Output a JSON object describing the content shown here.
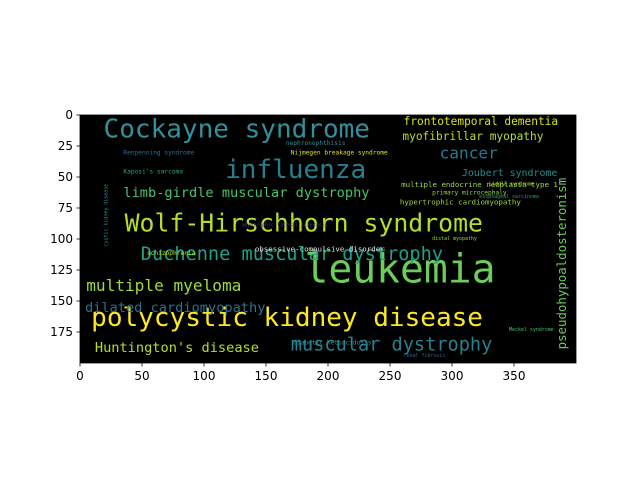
{
  "chart_data": {
    "type": "image",
    "title": "",
    "xlabel": "",
    "ylabel": "",
    "xlim": [
      0,
      400
    ],
    "ylim": [
      200,
      0
    ],
    "x_ticks": [
      0,
      50,
      100,
      150,
      200,
      250,
      300,
      350
    ],
    "y_ticks": [
      0,
      25,
      50,
      75,
      100,
      125,
      150,
      175
    ],
    "background_color": "#000000",
    "words": [
      {
        "text": "leukemia",
        "x": 181,
        "y": 135,
        "size": 32,
        "color": "#6ccd5a"
      },
      {
        "text": "polycystic kidney disease",
        "x": 9,
        "y": 170,
        "size": 21,
        "color": "#fde725"
      },
      {
        "text": "Wolf-Hirschhorn syndrome",
        "x": 36,
        "y": 94,
        "size": 20,
        "color": "#b5de2b"
      },
      {
        "text": "Cockayne syndrome",
        "x": 19,
        "y": 18,
        "size": 21,
        "color": "#31909a"
      },
      {
        "text": "influenza",
        "x": 117,
        "y": 51,
        "size": 21,
        "color": "#277f8e"
      },
      {
        "text": "Duchenne muscular dystrophy",
        "x": 49,
        "y": 117,
        "size": 15,
        "color": "#1fa187"
      },
      {
        "text": "muscular dystrophy",
        "x": 170,
        "y": 190,
        "size": 15,
        "color": "#26828e"
      },
      {
        "text": "multiple myeloma",
        "x": 5,
        "y": 142,
        "size": 13,
        "color": "#a0da39"
      },
      {
        "text": "limb-girdle muscular dystrophy",
        "x": 35,
        "y": 66,
        "size": 11,
        "color": "#4ac16d"
      },
      {
        "text": "dilated cardiomyopathy",
        "x": 4,
        "y": 159,
        "size": 11,
        "color": "#2c728e"
      },
      {
        "text": "Huntington's disease",
        "x": 12,
        "y": 191,
        "size": 11,
        "color": "#b5de2b"
      },
      {
        "text": "cancer",
        "x": 290,
        "y": 35,
        "size": 13,
        "color": "#2a788e"
      },
      {
        "text": "frontotemporal dementia",
        "x": 261,
        "y": 8,
        "size": 9,
        "color": "#d8e219"
      },
      {
        "text": "myofibrillar myopathy",
        "x": 260,
        "y": 20,
        "size": 9,
        "color": "#b5de2b"
      },
      {
        "text": "Joubert syndrome",
        "x": 308,
        "y": 49,
        "size": 8,
        "color": "#238a8d"
      },
      {
        "text": "multiple endocrine neoplasia type 1",
        "x": 259,
        "y": 58,
        "size": 6,
        "color": "#a0da39"
      },
      {
        "text": "pseudohypoaldosteronism",
        "x": 392,
        "y": 189,
        "size": 10,
        "color": "#6ccd5a",
        "rotate": -90
      },
      {
        "text": "obsessive-compulsive disorder",
        "x": 141,
        "y": 110,
        "size": 6,
        "color": "#e8e8e8"
      },
      {
        "text": "hypertrophic cardiomyopathy",
        "x": 258,
        "y": 72,
        "size": 6,
        "color": "#9fda3a"
      },
      {
        "text": "primary microcephaly",
        "x": 284,
        "y": 64,
        "size": 5,
        "color": "#90d743"
      },
      {
        "text": "Nijmegen breakage syndrome",
        "x": 170,
        "y": 32,
        "size": 5,
        "color": "#d8e219"
      },
      {
        "text": "nephronophthisis",
        "x": 166,
        "y": 24,
        "size": 5,
        "color": "#31909a"
      },
      {
        "text": "Kaposi's sarcoma",
        "x": 35,
        "y": 47,
        "size": 5,
        "color": "#22a884"
      },
      {
        "text": "Renpenning syndrome",
        "x": 35,
        "y": 32,
        "size": 5,
        "color": "#2f6c8e"
      },
      {
        "text": "schizophrenia",
        "x": 54,
        "y": 113,
        "size": 5,
        "color": "#c8e020"
      },
      {
        "text": "diabetic ketoacidosis",
        "x": 172,
        "y": 185,
        "size": 5,
        "color": "#31909a"
      },
      {
        "text": "cystic kidney disease",
        "x": 22,
        "y": 106,
        "size": 4,
        "color": "#31909a",
        "rotate": -90
      },
      {
        "text": "Liddle syndrome",
        "x": 330,
        "y": 57,
        "size": 4,
        "color": "#b5de2b"
      },
      {
        "text": "distal myopathy",
        "x": 284,
        "y": 101,
        "size": 4,
        "color": "#90d743"
      },
      {
        "text": "Meckel syndrome",
        "x": 346,
        "y": 174,
        "size": 4,
        "color": "#4ac16d"
      },
      {
        "text": "renal fibrosis",
        "x": 261,
        "y": 195,
        "size": 4,
        "color": "#355f8d"
      },
      {
        "text": "esophageal carcinoma",
        "x": 322,
        "y": 67,
        "size": 4,
        "color": "#1f9e89"
      },
      {
        "text": "amyotrophic lateral sclerosis",
        "x": 130,
        "y": 90,
        "size": 4,
        "color": "#46327e"
      }
    ]
  }
}
